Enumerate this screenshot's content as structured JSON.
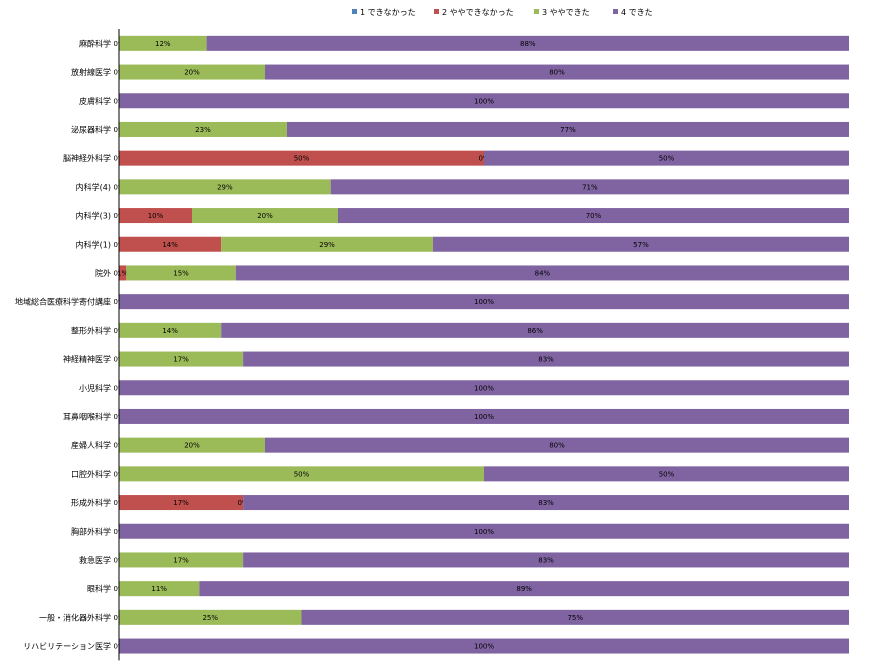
{
  "chart_data": {
    "type": "bar",
    "orientation": "horizontal",
    "stacked": "percent",
    "xlim": [
      0,
      100
    ],
    "legend": {
      "placement": "top"
    },
    "categories": [
      "麻酔科学",
      "放射線医学",
      "皮膚科学",
      "泌尿器科学",
      "脳神経外科学",
      "内科学(4)",
      "内科学(3)",
      "内科学(1)",
      "院外",
      "地域総合医療科学寄付講座",
      "整形外科学",
      "神経精神医学",
      "小児科学",
      "耳鼻咽喉科学",
      "産婦人科学",
      "口腔外科学",
      "形成外科学",
      "胸部外科学",
      "救急医学",
      "眼科学",
      "一般・消化器外科学",
      "リハビリテーション医学"
    ],
    "series": [
      {
        "name": "1 できなかった",
        "color": "#4f81bd",
        "values": [
          0,
          0,
          0,
          0,
          0,
          0,
          0,
          0,
          0,
          0,
          0,
          0,
          0,
          0,
          0,
          0,
          0,
          0,
          0,
          0,
          0,
          0
        ],
        "labels": [
          "0%",
          "0%",
          "0%",
          "0%",
          "0%",
          "0%",
          "0%",
          "0%",
          "0%",
          "0%",
          "0%",
          "0%",
          "0%",
          "0%",
          "0%",
          "0%",
          "0%",
          "0%",
          "0%",
          "0%",
          "0%",
          "0%"
        ]
      },
      {
        "name": "2 ややできなかった",
        "color": "#c0504d",
        "values": [
          0,
          0,
          0,
          0,
          50,
          0,
          10,
          14,
          1,
          0,
          0,
          0,
          0,
          0,
          0,
          0,
          17,
          0,
          0,
          0,
          0,
          0
        ],
        "labels": [
          "",
          "",
          "",
          "",
          "50%",
          "",
          "10%",
          "14%",
          "1%",
          "",
          "",
          "",
          "",
          "",
          "",
          "",
          "17%",
          "",
          "",
          "",
          "",
          ""
        ]
      },
      {
        "name": "3 ややできた",
        "color": "#9bbb59",
        "values": [
          12,
          20,
          0,
          23,
          0,
          29,
          20,
          29,
          15,
          0,
          14,
          17,
          0,
          0,
          20,
          50,
          0,
          0,
          17,
          11,
          25,
          0
        ],
        "labels": [
          "12%",
          "20%",
          "",
          "23%",
          "0%",
          "29%",
          "20%",
          "29%",
          "15%",
          "",
          "14%",
          "17%",
          "",
          "",
          "20%",
          "50%",
          "0%",
          "",
          "17%",
          "11%",
          "25%",
          ""
        ]
      },
      {
        "name": "4 できた",
        "color": "#8064a2",
        "values": [
          88,
          80,
          100,
          77,
          50,
          71,
          70,
          57,
          84,
          100,
          86,
          83,
          100,
          100,
          80,
          50,
          83,
          100,
          83,
          89,
          75,
          100
        ],
        "labels": [
          "88%",
          "80%",
          "100%",
          "77%",
          "50%",
          "71%",
          "70%",
          "57%",
          "84%",
          "100%",
          "86%",
          "83%",
          "100%",
          "100%",
          "80%",
          "50%",
          "83%",
          "100%",
          "83%",
          "89%",
          "75%",
          "100%"
        ]
      }
    ]
  }
}
